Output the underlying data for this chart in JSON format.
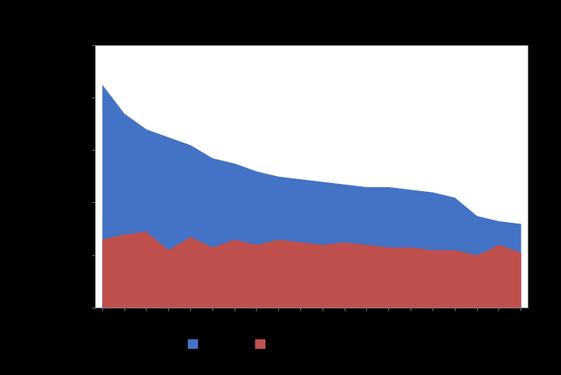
{
  "blue_series": [
    85,
    74,
    68,
    65,
    62,
    57,
    55,
    52,
    50,
    49,
    48,
    47,
    46,
    46,
    45,
    44,
    42,
    35,
    33,
    32
  ],
  "red_series": [
    26,
    28,
    29,
    22,
    27,
    23,
    26,
    24,
    26,
    25,
    24,
    25,
    24,
    23,
    23,
    22,
    22,
    20,
    24,
    21
  ],
  "blue_color": "#4472C4",
  "red_color": "#C0504D",
  "background_color": "#000000",
  "plot_bg_color": "#FFFFFF",
  "ylim": [
    0,
    100
  ],
  "n_points": 20
}
